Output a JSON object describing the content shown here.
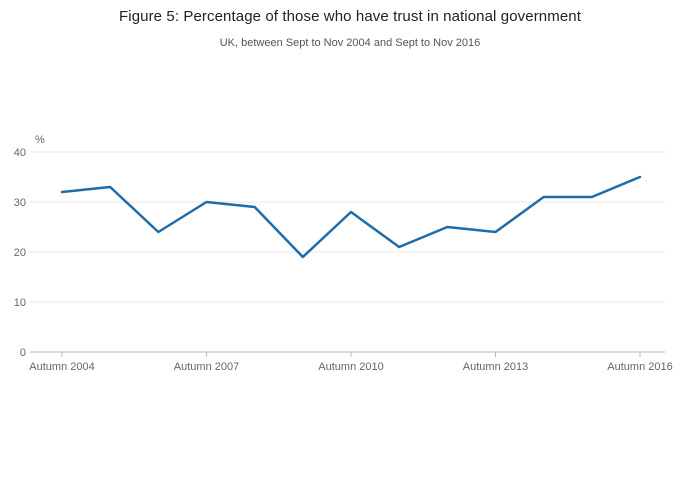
{
  "header": {
    "title": "Figure 5: Percentage of those who have trust in national government",
    "subtitle": "UK, between Sept to Nov 2004 and Sept to Nov 2016"
  },
  "chart_data": {
    "type": "line",
    "title": "Figure 5: Percentage of those who have trust in national government",
    "subtitle": "UK, between Sept to Nov 2004 and Sept to Nov 2016",
    "x": [
      2004,
      2005,
      2006,
      2007,
      2008,
      2009,
      2010,
      2011,
      2012,
      2013,
      2014,
      2015,
      2016
    ],
    "series": [
      {
        "name": "Trust in national government (%)",
        "values": [
          32,
          33,
          24,
          30,
          29,
          19,
          28,
          21,
          25,
          24,
          31,
          31,
          35
        ]
      }
    ],
    "x_ticks": [
      {
        "value": 2004,
        "label": "Autumn 2004"
      },
      {
        "value": 2007,
        "label": "Autumn 2007"
      },
      {
        "value": 2010,
        "label": "Autumn 2010"
      },
      {
        "value": 2013,
        "label": "Autumn 2013"
      },
      {
        "value": 2016,
        "label": "Autumn 2016"
      }
    ],
    "ylabel": "%",
    "ylim": [
      0,
      40
    ],
    "yticks": [
      0,
      10,
      20,
      30,
      40
    ],
    "grid": true,
    "legend": "none",
    "line_color": "#1f6cab",
    "gridline_color": "#e7e7e7",
    "axis_color": "#b9b9b9"
  }
}
